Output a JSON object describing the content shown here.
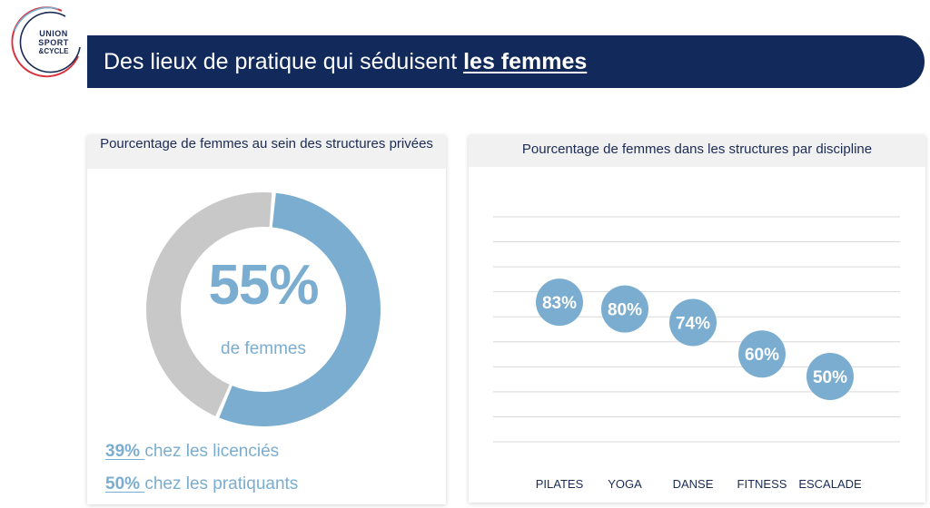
{
  "logo": {
    "line1": "UNION",
    "line2": "SPORT",
    "line3": "&CYCLE",
    "ring_colors": [
      "#d9323c",
      "#1b2b54",
      "#7aadd0"
    ]
  },
  "header": {
    "title_prefix": "Des lieux de pratique qui séduisent ",
    "title_emphasis": "les femmes"
  },
  "colors": {
    "accent": "#7aadd0",
    "navy": "#112a5b",
    "grey": "#c8c8c8"
  },
  "left_panel": {
    "title": "Pourcentage de femmes au sein des structures privées",
    "donut_value": "55%",
    "donut_caption": "de femmes",
    "stats": [
      {
        "value": "39% ",
        "text": "chez les licenciés"
      },
      {
        "value": "50% ",
        "text": "chez les pratiquants"
      }
    ]
  },
  "chart_data": [
    {
      "type": "pie",
      "title": "Pourcentage de femmes au sein des structures privées",
      "categories": [
        "femmes",
        ""
      ],
      "values": [
        55,
        45
      ]
    },
    {
      "type": "scatter",
      "title": "Pourcentage de femmes dans les structures par discipline",
      "categories": [
        "PILATES",
        "YOGA",
        "DANSE",
        "FITNESS",
        "ESCALADE"
      ],
      "values": [
        83,
        80,
        74,
        60,
        50
      ],
      "data_labels": [
        "83%",
        "80%",
        "74%",
        "60%",
        "50%"
      ],
      "ylim": [
        0,
        100
      ],
      "grid": true
    }
  ]
}
